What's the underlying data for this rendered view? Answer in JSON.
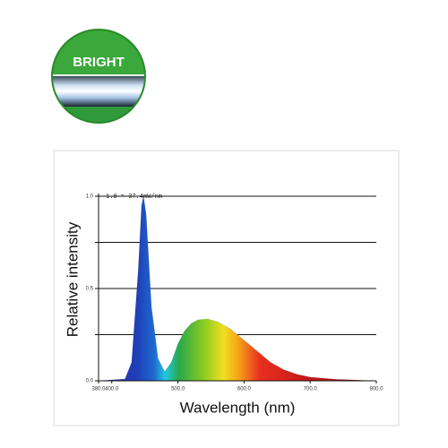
{
  "badge_label": "BRIGHT",
  "chart_data": {
    "type": "area",
    "ylabel": "Relative intensity",
    "xlabel": "Wavelength (nm)",
    "annotation": "1.0 = 37.4mW/nm",
    "x": [
      380,
      420,
      430,
      440,
      445,
      448,
      452,
      460,
      470,
      480,
      490,
      500,
      510,
      520,
      530,
      545,
      560,
      580,
      600,
      620,
      640,
      660,
      680,
      700,
      740,
      800
    ],
    "values": [
      0,
      0.01,
      0.1,
      0.6,
      0.95,
      1.0,
      0.9,
      0.4,
      0.12,
      0.05,
      0.1,
      0.2,
      0.27,
      0.31,
      0.33,
      0.335,
      0.32,
      0.28,
      0.22,
      0.16,
      0.1,
      0.06,
      0.035,
      0.02,
      0.008,
      0
    ],
    "xlim": [
      380,
      800
    ],
    "ylim": [
      0,
      1
    ],
    "xticks": [
      {
        "value": 380,
        "label": "380.0"
      },
      {
        "value": 400,
        "label": "400.0"
      },
      {
        "value": 500,
        "label": "500.0"
      },
      {
        "value": 600,
        "label": "600.0"
      },
      {
        "value": 700,
        "label": "700.0"
      },
      {
        "value": 800,
        "label": "800.0"
      }
    ],
    "yticks": [
      {
        "value": 0,
        "label": "0.0"
      },
      {
        "value": 0.25,
        "label": null
      },
      {
        "value": 0.5,
        "label": "0.5"
      },
      {
        "value": 0.75,
        "label": null
      },
      {
        "value": 1,
        "label": "1.0"
      }
    ],
    "grid": true
  }
}
